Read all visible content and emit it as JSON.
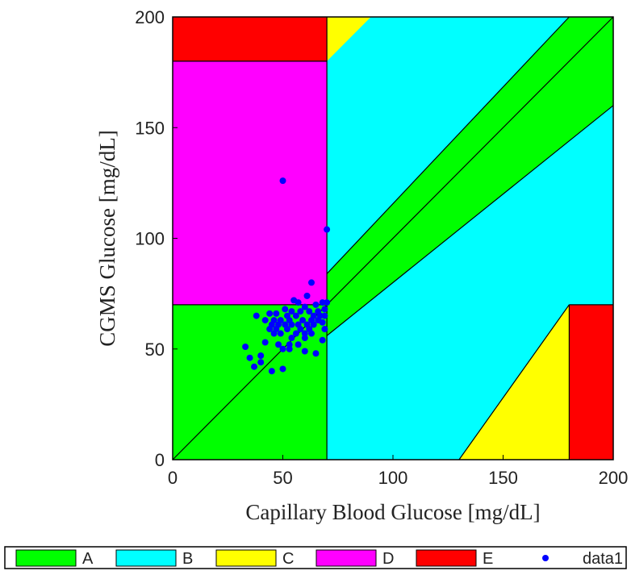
{
  "chart_data": {
    "type": "scatter",
    "title": "",
    "xlabel": "Capillary Blood Glucose [mg/dL]",
    "ylabel": "CGMS Glucose [mg/dL]",
    "xlim": [
      0,
      200
    ],
    "ylim": [
      0,
      200
    ],
    "x_ticks": [
      0,
      50,
      100,
      150,
      200
    ],
    "y_ticks": [
      0,
      50,
      100,
      150,
      200
    ],
    "x_tick_labels": [
      "0",
      "50",
      "100",
      "150",
      "200"
    ],
    "y_tick_labels": [
      "0",
      "50",
      "100",
      "150",
      "200"
    ],
    "grid": false,
    "legend_position": "bottom",
    "zone_colors": {
      "A": "#00ff00",
      "B": "#00ffff",
      "C": "#ffff00",
      "D": "#ff00ff",
      "E": "#ff0000"
    },
    "zones": [
      {
        "zone": "B",
        "polygon": [
          [
            0,
            0
          ],
          [
            200,
            0
          ],
          [
            200,
            200
          ],
          [
            0,
            200
          ]
        ]
      },
      {
        "zone": "A",
        "polygon": [
          [
            70,
            56
          ],
          [
            200,
            160
          ],
          [
            200,
            200
          ],
          [
            180,
            200
          ],
          [
            70,
            84
          ]
        ]
      },
      {
        "zone": "A",
        "polygon": [
          [
            0,
            0
          ],
          [
            70,
            0
          ],
          [
            70,
            70
          ],
          [
            0,
            70
          ]
        ]
      },
      {
        "zone": "D",
        "polygon": [
          [
            0,
            70
          ],
          [
            70,
            70
          ],
          [
            70,
            180
          ],
          [
            0,
            180
          ]
        ]
      },
      {
        "zone": "E",
        "polygon": [
          [
            0,
            180
          ],
          [
            70,
            180
          ],
          [
            70,
            200
          ],
          [
            0,
            200
          ]
        ]
      },
      {
        "zone": "C",
        "polygon": [
          [
            70,
            180
          ],
          [
            70,
            200
          ],
          [
            90,
            200
          ]
        ]
      },
      {
        "zone": "C",
        "polygon": [
          [
            130,
            0
          ],
          [
            180,
            0
          ],
          [
            180,
            70
          ]
        ]
      },
      {
        "zone": "E",
        "polygon": [
          [
            180,
            0
          ],
          [
            200,
            0
          ],
          [
            200,
            70
          ],
          [
            180,
            70
          ]
        ]
      }
    ],
    "lines": [
      [
        [
          0,
          0
        ],
        [
          200,
          200
        ]
      ],
      [
        [
          70,
          56
        ],
        [
          200,
          160
        ]
      ],
      [
        [
          70,
          84
        ],
        [
          180,
          200
        ]
      ],
      [
        [
          70,
          0
        ],
        [
          70,
          200
        ]
      ],
      [
        [
          0,
          70
        ],
        [
          70,
          70
        ]
      ],
      [
        [
          0,
          180
        ],
        [
          70,
          180
        ]
      ],
      [
        [
          130,
          0
        ],
        [
          180,
          70
        ]
      ],
      [
        [
          180,
          0
        ],
        [
          180,
          70
        ]
      ],
      [
        [
          180,
          70
        ],
        [
          200,
          70
        ]
      ]
    ],
    "series": [
      {
        "name": "data1",
        "color": "#0000ff",
        "points": [
          [
            50,
            126
          ],
          [
            70,
            104
          ],
          [
            63,
            80
          ],
          [
            61,
            74
          ],
          [
            55,
            72
          ],
          [
            57,
            71
          ],
          [
            60,
            69
          ],
          [
            65,
            70
          ],
          [
            68,
            71
          ],
          [
            70,
            71
          ],
          [
            51,
            68
          ],
          [
            54,
            67
          ],
          [
            58,
            67
          ],
          [
            62,
            67
          ],
          [
            66,
            67
          ],
          [
            69,
            68
          ],
          [
            44,
            66
          ],
          [
            47,
            66
          ],
          [
            38,
            65
          ],
          [
            52,
            65
          ],
          [
            56,
            65
          ],
          [
            64,
            65
          ],
          [
            67,
            65
          ],
          [
            69,
            65
          ],
          [
            42,
            63
          ],
          [
            46,
            63
          ],
          [
            49,
            63
          ],
          [
            53,
            63
          ],
          [
            59,
            63
          ],
          [
            63,
            63
          ],
          [
            66,
            63
          ],
          [
            68,
            62
          ],
          [
            45,
            61
          ],
          [
            48,
            61
          ],
          [
            51,
            61
          ],
          [
            54,
            61
          ],
          [
            57,
            61
          ],
          [
            61,
            61
          ],
          [
            64,
            61
          ],
          [
            44,
            59
          ],
          [
            47,
            59
          ],
          [
            52,
            59
          ],
          [
            58,
            59
          ],
          [
            62,
            59
          ],
          [
            69,
            59
          ],
          [
            46,
            57
          ],
          [
            49,
            57
          ],
          [
            56,
            57
          ],
          [
            60,
            57
          ],
          [
            63,
            57
          ],
          [
            54,
            55
          ],
          [
            60,
            55
          ],
          [
            68,
            54
          ],
          [
            42,
            53
          ],
          [
            48,
            52
          ],
          [
            53,
            52
          ],
          [
            57,
            52
          ],
          [
            33,
            51
          ],
          [
            50,
            50
          ],
          [
            53,
            50
          ],
          [
            60,
            49
          ],
          [
            65,
            48
          ],
          [
            40,
            47
          ],
          [
            35,
            46
          ],
          [
            40,
            44
          ],
          [
            37,
            42
          ],
          [
            50,
            41
          ],
          [
            45,
            40
          ]
        ]
      }
    ],
    "legend": [
      {
        "key": "A",
        "label": "A",
        "kind": "patch"
      },
      {
        "key": "B",
        "label": "B",
        "kind": "patch"
      },
      {
        "key": "C",
        "label": "C",
        "kind": "patch"
      },
      {
        "key": "D",
        "label": "D",
        "kind": "patch"
      },
      {
        "key": "E",
        "label": "E",
        "kind": "patch"
      },
      {
        "key": "data1",
        "label": "data1",
        "kind": "marker"
      }
    ]
  }
}
